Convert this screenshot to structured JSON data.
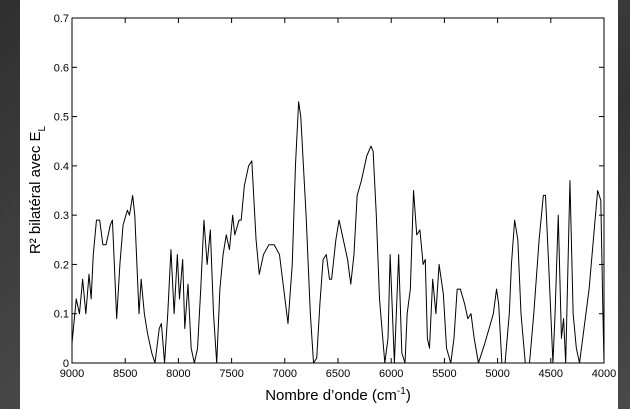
{
  "chart_data": {
    "type": "line",
    "xlabel": [
      "Nombre d’onde (cm",
      "-1",
      ")"
    ],
    "ylabel": [
      "R² bilatéral avec E",
      "L"
    ],
    "color": "#000000",
    "xlim": [
      9000,
      4000
    ],
    "xticks": [
      9000,
      8500,
      8000,
      7500,
      7000,
      6500,
      6000,
      5500,
      5000,
      4500,
      4000
    ],
    "ylim": [
      0,
      0.7
    ],
    "yticks": [
      0,
      0.1,
      0.2,
      0.3,
      0.4,
      0.5,
      0.6,
      0.7
    ],
    "x": [
      9000,
      8960,
      8930,
      8900,
      8870,
      8840,
      8820,
      8800,
      8770,
      8740,
      8710,
      8680,
      8640,
      8620,
      8580,
      8550,
      8520,
      8480,
      8460,
      8430,
      8410,
      8370,
      8350,
      8320,
      8290,
      8250,
      8220,
      8180,
      8160,
      8130,
      8100,
      8070,
      8040,
      8010,
      7990,
      7960,
      7940,
      7910,
      7880,
      7850,
      7820,
      7790,
      7760,
      7730,
      7700,
      7670,
      7640,
      7610,
      7580,
      7550,
      7520,
      7490,
      7470,
      7430,
      7410,
      7380,
      7340,
      7310,
      7270,
      7240,
      7200,
      7150,
      7100,
      7050,
      7010,
      6970,
      6930,
      6900,
      6870,
      6850,
      6800,
      6760,
      6730,
      6700,
      6670,
      6640,
      6610,
      6580,
      6560,
      6520,
      6490,
      6450,
      6410,
      6380,
      6350,
      6320,
      6280,
      6230,
      6190,
      6170,
      6140,
      6110,
      6060,
      6030,
      6010,
      5970,
      5930,
      5900,
      5870,
      5850,
      5820,
      5790,
      5760,
      5730,
      5700,
      5680,
      5660,
      5640,
      5610,
      5580,
      5550,
      5510,
      5480,
      5440,
      5410,
      5380,
      5350,
      5310,
      5280,
      5250,
      5220,
      5180,
      5120,
      5080,
      5040,
      5010,
      4990,
      4960,
      4930,
      4890,
      4870,
      4840,
      4810,
      4780,
      4740,
      4700,
      4660,
      4610,
      4570,
      4550,
      4520,
      4480,
      4460,
      4430,
      4400,
      4380,
      4360,
      4320,
      4290,
      4260,
      4230,
      4200,
      4140,
      4100,
      4060,
      4030,
      4010,
      4000
    ],
    "values": [
      0.04,
      0.13,
      0.1,
      0.17,
      0.1,
      0.18,
      0.13,
      0.22,
      0.29,
      0.29,
      0.24,
      0.24,
      0.28,
      0.29,
      0.09,
      0.2,
      0.28,
      0.31,
      0.3,
      0.34,
      0.3,
      0.1,
      0.17,
      0.1,
      0.06,
      0.02,
      0.0,
      0.07,
      0.08,
      0.0,
      0.1,
      0.23,
      0.1,
      0.22,
      0.13,
      0.21,
      0.07,
      0.16,
      0.03,
      0.0,
      0.03,
      0.15,
      0.29,
      0.2,
      0.27,
      0.1,
      0.0,
      0.15,
      0.22,
      0.26,
      0.23,
      0.3,
      0.26,
      0.29,
      0.29,
      0.36,
      0.4,
      0.41,
      0.25,
      0.18,
      0.22,
      0.24,
      0.24,
      0.22,
      0.15,
      0.08,
      0.2,
      0.4,
      0.53,
      0.5,
      0.3,
      0.1,
      0.0,
      0.01,
      0.12,
      0.21,
      0.22,
      0.17,
      0.17,
      0.25,
      0.29,
      0.25,
      0.21,
      0.16,
      0.22,
      0.34,
      0.37,
      0.42,
      0.44,
      0.43,
      0.3,
      0.13,
      0.0,
      0.05,
      0.22,
      0.0,
      0.22,
      0.02,
      0.0,
      0.1,
      0.15,
      0.35,
      0.26,
      0.27,
      0.2,
      0.21,
      0.05,
      0.03,
      0.17,
      0.1,
      0.2,
      0.14,
      0.03,
      0.0,
      0.05,
      0.15,
      0.15,
      0.12,
      0.09,
      0.1,
      0.05,
      0.0,
      0.04,
      0.07,
      0.1,
      0.15,
      0.12,
      0.0,
      0.0,
      0.1,
      0.2,
      0.29,
      0.25,
      0.1,
      0.0,
      0.0,
      0.1,
      0.25,
      0.34,
      0.34,
      0.2,
      0.0,
      0.1,
      0.3,
      0.05,
      0.09,
      0.0,
      0.37,
      0.1,
      0.03,
      0.0,
      0.05,
      0.15,
      0.25,
      0.35,
      0.33,
      0.1,
      0.0
    ]
  }
}
